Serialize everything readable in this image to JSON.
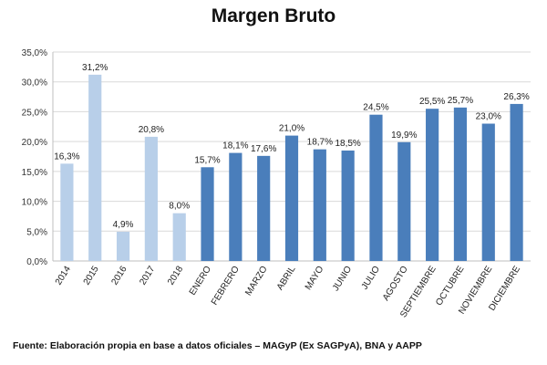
{
  "chart_data": {
    "type": "bar",
    "title": "Margen Bruto",
    "categories": [
      "2014",
      "2015",
      "2016",
      "2017",
      "2018",
      "ENERO",
      "FEBRERO",
      "MARZO",
      "ABRIL",
      "MAYO",
      "JUNIO",
      "JULIO",
      "AGOSTO",
      "SEPTIEMBRE",
      "OCTUBRE",
      "NOVIEMBRE",
      "DICIEMBRE"
    ],
    "values": [
      16.3,
      31.2,
      4.9,
      20.8,
      8.0,
      15.7,
      18.1,
      17.6,
      21.0,
      18.7,
      18.5,
      24.5,
      19.9,
      25.5,
      25.7,
      23.0,
      26.3
    ],
    "value_labels": [
      "16,3%",
      "31,2%",
      "4,9%",
      "20,8%",
      "8,0%",
      "15,7%",
      "18,1%",
      "17,6%",
      "21,0%",
      "18,7%",
      "18,5%",
      "24,5%",
      "19,9%",
      "25,5%",
      "25,7%",
      "23,0%",
      "26,3%"
    ],
    "yticks": [
      0,
      5,
      10,
      15,
      20,
      25,
      30,
      35
    ],
    "ytick_labels": [
      "0,0%",
      "5,0%",
      "10,0%",
      "15,0%",
      "20,0%",
      "25,0%",
      "30,0%",
      "35,0%"
    ],
    "ylim": [
      0,
      35
    ],
    "grid": true,
    "colors": {
      "annual": "#b8cfe9",
      "monthly": "#4a7ebb",
      "grid": "#d9d9d9"
    },
    "annual_count": 5
  },
  "source_note": "Fuente: Elaboración propia en base a datos oficiales – MAGyP (Ex SAGPyA), BNA y AAPP"
}
